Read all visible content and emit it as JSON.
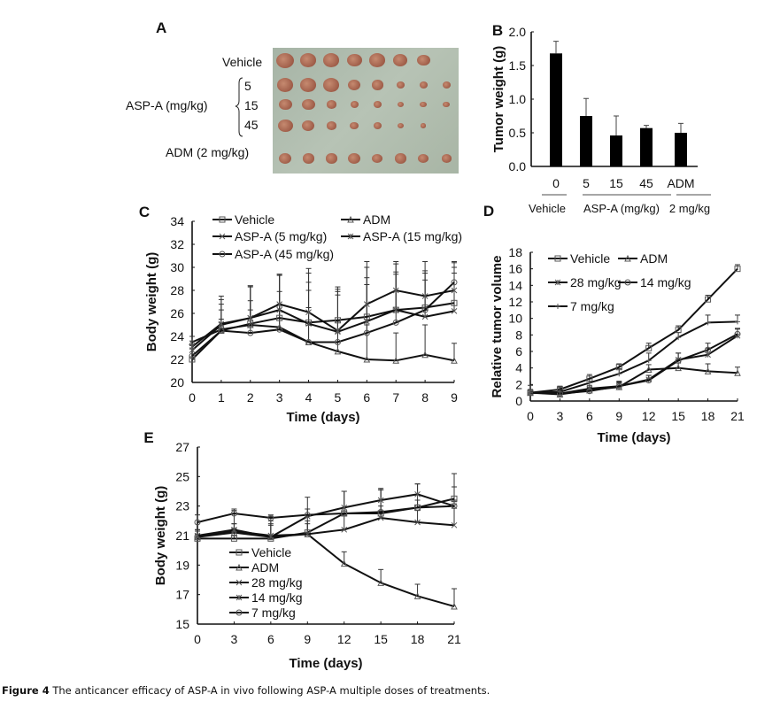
{
  "caption": {
    "label": "Figure 4",
    "text": "The anticancer efficacy of ASP-A in vivo following ASP-A multiple doses of treatments."
  },
  "panel_a": {
    "letter": "A",
    "row_labels": [
      "Vehicle",
      "ASP-A (mg/kg)",
      "ADM (2 mg/kg)"
    ],
    "dose_labels": [
      "5",
      "15",
      "45"
    ],
    "tumor_counts": [
      7,
      8,
      8,
      7,
      8
    ]
  },
  "chart_data": [
    {
      "panel": "B",
      "type": "bar",
      "title": "",
      "xlabel": "",
      "ylabel": "Tumor weight (g)",
      "categories": [
        "0",
        "5",
        "15",
        "45",
        "ADM"
      ],
      "group_labels": [
        "Vehicle",
        "ASP-A (mg/kg)",
        "2 mg/kg"
      ],
      "values": [
        1.68,
        0.75,
        0.46,
        0.57,
        0.5
      ],
      "errors": [
        0.18,
        0.26,
        0.29,
        0.04,
        0.14
      ],
      "ylim": [
        0,
        2.0
      ],
      "yticks": [
        "0.0",
        "0.5",
        "1.0",
        "1.5",
        "2.0"
      ],
      "grid": false,
      "color": "#000000"
    },
    {
      "panel": "C",
      "type": "line",
      "xlabel": "Time (days)",
      "ylabel": "Body weight (g)",
      "x": [
        0,
        1,
        2,
        3,
        4,
        5,
        6,
        7,
        8,
        9
      ],
      "xlim": [
        0,
        9
      ],
      "ylim": [
        20,
        34
      ],
      "yticks": [
        "20",
        "22",
        "24",
        "26",
        "28",
        "30",
        "32",
        "34"
      ],
      "legend": "top-left",
      "grid": false,
      "series": [
        {
          "name": "Vehicle",
          "marker": "square",
          "values": [
            22.0,
            24.5,
            25.1,
            25.6,
            25.2,
            25.4,
            25.7,
            26.3,
            26.5,
            26.9
          ],
          "errors": [
            1.2,
            1.8,
            2.0,
            2.3,
            2.8,
            2.7,
            3.4,
            3.1,
            3.0,
            3.1
          ]
        },
        {
          "name": "ADM",
          "marker": "triangle",
          "values": [
            23.5,
            24.6,
            25.0,
            24.8,
            23.5,
            22.7,
            22.0,
            21.9,
            22.4,
            21.9
          ],
          "errors": [
            0.5,
            0.9,
            1.3,
            2.0,
            3.0,
            2.6,
            3.0,
            2.4,
            2.6,
            1.5
          ]
        },
        {
          "name": "ASP-A (5 mg/kg)",
          "marker": "x",
          "values": [
            22.8,
            25.0,
            25.6,
            26.3,
            25.1,
            24.4,
            25.3,
            26.3,
            25.7,
            26.2
          ],
          "errors": [
            0.8,
            1.8,
            2.8,
            3.0,
            3.6,
            3.2,
            3.2,
            3.3,
            3.2,
            3.3
          ]
        },
        {
          "name": "ASP-A (15 mg/kg)",
          "marker": "asterisk",
          "values": [
            23.1,
            25.1,
            25.6,
            26.8,
            26.1,
            24.5,
            26.8,
            28.0,
            27.5,
            28.0
          ],
          "errors": [
            0.9,
            2.4,
            2.8,
            2.6,
            3.8,
            3.4,
            3.2,
            2.3,
            2.2,
            2.4
          ]
        },
        {
          "name": "ASP-A (45 mg/kg)",
          "marker": "circle",
          "values": [
            22.3,
            24.5,
            24.3,
            24.6,
            23.5,
            23.5,
            24.3,
            25.2,
            26.3,
            28.7
          ],
          "errors": [
            1.0,
            2.7,
            4.0,
            4.8,
            6.0,
            4.8,
            6.2,
            5.3,
            4.2,
            1.8
          ]
        }
      ]
    },
    {
      "panel": "D",
      "type": "line",
      "xlabel": "Time (days)",
      "ylabel": "Relative tumor volume",
      "x": [
        0,
        3,
        6,
        9,
        12,
        15,
        18,
        21
      ],
      "xlim": [
        0,
        21
      ],
      "ylim": [
        0,
        18
      ],
      "yticks": [
        "0",
        "2",
        "4",
        "6",
        "8",
        "10",
        "12",
        "14",
        "16",
        "18"
      ],
      "legend": "top-left",
      "grid": false,
      "series": [
        {
          "name": "Vehicle",
          "marker": "square",
          "values": [
            1.0,
            1.4,
            2.7,
            4.1,
            6.4,
            8.6,
            12.3,
            16.0
          ],
          "errors": [
            0.4,
            0.4,
            0.5,
            0.4,
            0.6,
            0.5,
            0.5,
            0.5
          ]
        },
        {
          "name": "ADM",
          "marker": "triangle",
          "values": [
            1.0,
            0.8,
            1.3,
            1.7,
            3.8,
            4.0,
            3.6,
            3.4
          ],
          "errors": [
            0.3,
            0.3,
            0.3,
            0.5,
            0.6,
            0.6,
            0.9,
            0.7
          ]
        },
        {
          "name": "28 mg/kg",
          "marker": "asterisk",
          "values": [
            1.0,
            0.9,
            1.5,
            1.8,
            2.6,
            5.0,
            5.6,
            7.9
          ],
          "errors": [
            0.3,
            0.4,
            0.4,
            0.5,
            0.5,
            0.8,
            0.8,
            0.8
          ]
        },
        {
          "name": "14 mg/kg",
          "marker": "circle",
          "values": [
            1.0,
            0.9,
            1.2,
            1.8,
            2.5,
            4.9,
            6.2,
            8.1
          ],
          "errors": [
            0.3,
            0.4,
            0.5,
            0.6,
            0.6,
            0.9,
            0.8,
            0.7
          ]
        },
        {
          "name": "7 mg/kg",
          "marker": "plus",
          "values": [
            1.0,
            1.1,
            2.2,
            3.3,
            4.9,
            7.7,
            9.5,
            9.6
          ],
          "errors": [
            0.9,
            0.5,
            0.5,
            0.6,
            0.9,
            0.6,
            0.9,
            0.8
          ]
        }
      ]
    },
    {
      "panel": "E",
      "type": "line",
      "xlabel": "Time (days)",
      "ylabel": "Body weight (g)",
      "x": [
        0,
        3,
        6,
        9,
        12,
        15,
        18,
        21
      ],
      "xlim": [
        0,
        21
      ],
      "ylim": [
        15,
        27
      ],
      "yticks": [
        "15",
        "17",
        "19",
        "21",
        "23",
        "25",
        "27"
      ],
      "legend": "bottom-left",
      "grid": false,
      "series": [
        {
          "name": "Vehicle",
          "marker": "square",
          "values": [
            20.8,
            20.8,
            20.8,
            21.2,
            22.5,
            22.5,
            22.9,
            23.5
          ],
          "errors": [
            0.3,
            0.7,
            1.0,
            1.2,
            1.5,
            1.6,
            1.6,
            1.7
          ]
        },
        {
          "name": "ADM",
          "marker": "triangle",
          "values": [
            20.9,
            21.2,
            20.9,
            21.1,
            19.1,
            17.8,
            16.9,
            16.2
          ],
          "errors": [
            0.4,
            0.6,
            0.8,
            0.7,
            0.8,
            0.9,
            0.8,
            1.2
          ]
        },
        {
          "name": "28 mg/kg",
          "marker": "x",
          "values": [
            20.9,
            21.3,
            21.0,
            21.1,
            21.4,
            22.2,
            21.9,
            21.7
          ],
          "errors": [
            0.5,
            0.5,
            1.0,
            0.9,
            1.0,
            1.9,
            0.8,
            1.6
          ]
        },
        {
          "name": "14 mg/kg",
          "marker": "asterisk",
          "values": [
            21.0,
            21.4,
            20.9,
            22.3,
            22.9,
            23.4,
            23.8,
            23.0
          ],
          "errors": [
            0.4,
            1.3,
            1.4,
            1.3,
            1.1,
            0.8,
            0.7,
            1.3
          ]
        },
        {
          "name": "7 mg/kg",
          "marker": "circle",
          "values": [
            21.9,
            22.5,
            22.2,
            22.4,
            22.5,
            22.6,
            22.9,
            23.0
          ],
          "errors": [
            0.5,
            0.3,
            0.2,
            0.4,
            0.4,
            0.4,
            0.5,
            0.4
          ]
        }
      ]
    }
  ]
}
